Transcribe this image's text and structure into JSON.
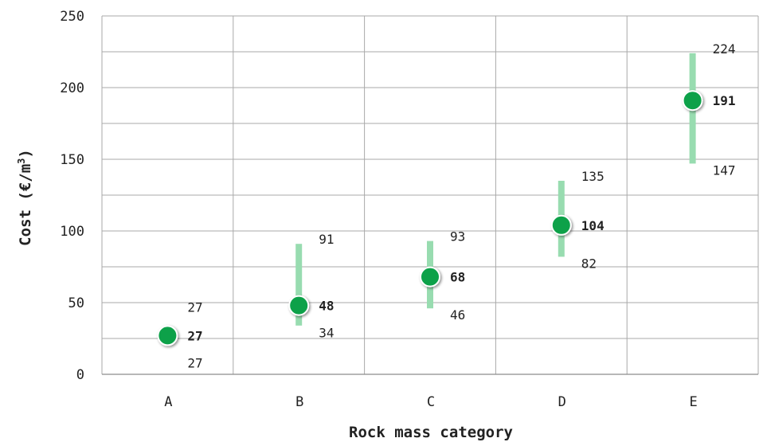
{
  "chart_data": {
    "type": "scatter",
    "xlabel": "Rock mass category",
    "ylabel_main": "Cost (€/m",
    "ylabel_sup": "3",
    "ylabel_close": ")",
    "categories": [
      "A",
      "B",
      "C",
      "D",
      "E"
    ],
    "y_ticks": [
      "0",
      "50",
      "100",
      "150",
      "200",
      "250"
    ],
    "ylim": [
      0,
      250
    ],
    "grid": true,
    "series": [
      {
        "mean": [
          27,
          48,
          68,
          104,
          191
        ],
        "min": [
          27,
          34,
          46,
          82,
          147
        ],
        "max": [
          27,
          91,
          93,
          135,
          224
        ]
      }
    ],
    "colors": {
      "marker": "#0aa14a",
      "marker_edge": "#ffffff",
      "range_bar": "#98dcb0",
      "grid": "#a9a9a9",
      "axis": "#8c8c8c"
    }
  }
}
